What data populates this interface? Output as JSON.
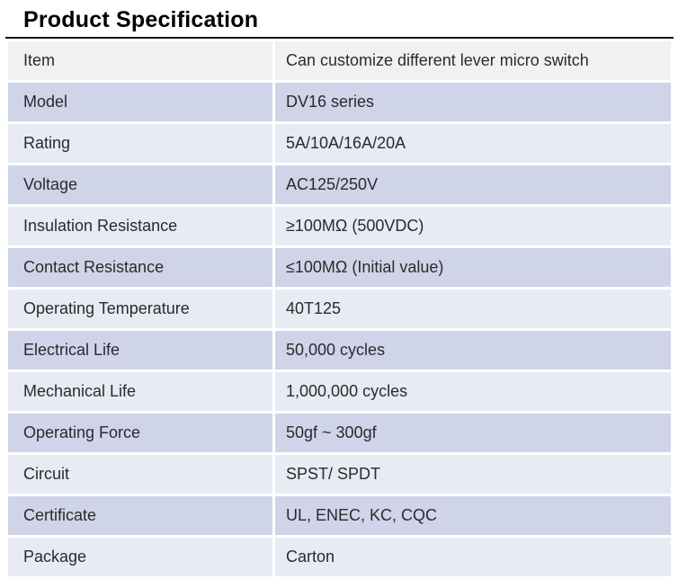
{
  "page": {
    "title": "Product Specification"
  },
  "table": {
    "rows": [
      {
        "label": "Item",
        "value": "Can customize different lever micro switch"
      },
      {
        "label": "Model",
        "value": "DV16 series"
      },
      {
        "label": "Rating",
        "value": "5A/10A/16A/20A"
      },
      {
        "label": "Voltage",
        "value": "AC125/250V"
      },
      {
        "label": "Insulation Resistance",
        "value": "≥100MΩ (500VDC)"
      },
      {
        "label": "Contact Resistance",
        "value": "≤100MΩ (Initial value)"
      },
      {
        "label": "Operating Temperature",
        "value": "40T125"
      },
      {
        "label": "Electrical Life",
        "value": "50,000 cycles"
      },
      {
        "label": "Mechanical Life",
        "value": "1,000,000 cycles"
      },
      {
        "label": "Operating Force",
        "value": "50gf ~ 300gf"
      },
      {
        "label": "Circuit",
        "value": "SPST/ SPDT"
      },
      {
        "label": "Certificate",
        "value": "UL, ENEC, KC, CQC"
      },
      {
        "label": "Package",
        "value": "Carton"
      }
    ]
  },
  "colors": {
    "title_text": "#000000",
    "top_border": "#111111",
    "header_row_bg": "#f1f1f1",
    "even_row_bg": "#cfd4e9",
    "odd_row_bg": "#e8eaf4",
    "separator": "#ffffff",
    "cell_text": "#2b2b2b"
  }
}
